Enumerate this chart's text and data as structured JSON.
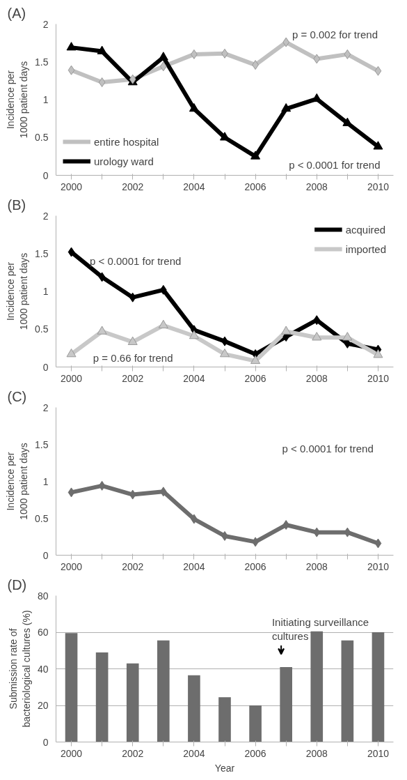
{
  "chart_data": [
    {
      "type": "line",
      "title": "(A)",
      "ylabel": "Incidence per\n1000 patient days",
      "categories": [
        "2000",
        null,
        "2002",
        null,
        "2004",
        null,
        "2006",
        null,
        "2008",
        null,
        "2010"
      ],
      "ylim": [
        0,
        2
      ],
      "yticks": [
        0,
        0.5,
        1,
        1.5,
        2
      ],
      "grid": false,
      "legend": "bottom left",
      "series": [
        {
          "name": "entire hospital",
          "color": "#c0c0c0",
          "marker": "diamond",
          "values": [
            1.39,
            1.23,
            1.27,
            1.44,
            1.6,
            1.61,
            1.46,
            1.76,
            1.54,
            1.6,
            1.38
          ]
        },
        {
          "name": "urology ward",
          "color": "#000000",
          "marker": "triangle",
          "values": [
            1.69,
            1.64,
            1.23,
            1.56,
            0.88,
            0.5,
            0.25,
            0.88,
            1.01,
            0.69,
            0.38
          ]
        }
      ],
      "annotations": [
        "p = 0.002 for trend",
        "p < 0.0001 for trend"
      ]
    },
    {
      "type": "line",
      "title": "(B)",
      "ylabel": "Incidence per\n1000 patient days",
      "categories": [
        "2000",
        null,
        "2002",
        null,
        "2004",
        null,
        "2006",
        null,
        "2008",
        null,
        "2010"
      ],
      "ylim": [
        0,
        2
      ],
      "yticks": [
        0,
        0.5,
        1,
        1.5,
        2
      ],
      "grid": false,
      "legend": "top right",
      "series": [
        {
          "name": "acquired",
          "color": "#000000",
          "marker": "diamond",
          "values": [
            1.52,
            1.19,
            0.92,
            1.02,
            0.49,
            0.34,
            0.17,
            0.4,
            0.62,
            0.31,
            0.23
          ]
        },
        {
          "name": "imported",
          "color": "#c8c8c8",
          "marker": "triangle",
          "values": [
            0.17,
            0.47,
            0.33,
            0.55,
            0.41,
            0.17,
            0.08,
            0.47,
            0.39,
            0.39,
            0.16
          ]
        }
      ],
      "annotations": [
        "p < 0.0001 for trend",
        "p = 0.66 for trend"
      ]
    },
    {
      "type": "line",
      "title": "(C)",
      "ylabel": "Incidence per\n1000 patient days",
      "categories": [
        "2000",
        null,
        "2002",
        null,
        "2004",
        null,
        "2006",
        null,
        "2008",
        null,
        "2010"
      ],
      "ylim": [
        0,
        2
      ],
      "yticks": [
        0,
        0.5,
        1,
        1.5,
        2
      ],
      "grid": false,
      "series": [
        {
          "color": "#6d6d6d",
          "marker": "diamond",
          "values": [
            0.85,
            0.94,
            0.82,
            0.86,
            0.49,
            0.26,
            0.18,
            0.41,
            0.31,
            0.31,
            0.16
          ]
        }
      ],
      "annotations": [
        "p < 0.0001 for trend"
      ]
    },
    {
      "type": "bar",
      "title": "(D)",
      "xlabel": "Year",
      "ylabel": "Submission rate of\nbacteriological cultures (%)",
      "categories": [
        "2000",
        null,
        "2002",
        null,
        "2004",
        null,
        "2006",
        null,
        "2008",
        null,
        "2010"
      ],
      "ylim": [
        0,
        80
      ],
      "yticks": [
        0,
        20,
        40,
        60,
        80
      ],
      "grid": "y",
      "series": [
        {
          "color": "#6d6d6d",
          "values": [
            59.5,
            49,
            43,
            55.5,
            36.5,
            24.5,
            20,
            41,
            60.5,
            55.5,
            60
          ]
        }
      ],
      "annotations": [
        "Initiating surveillance\ncultures"
      ]
    }
  ]
}
